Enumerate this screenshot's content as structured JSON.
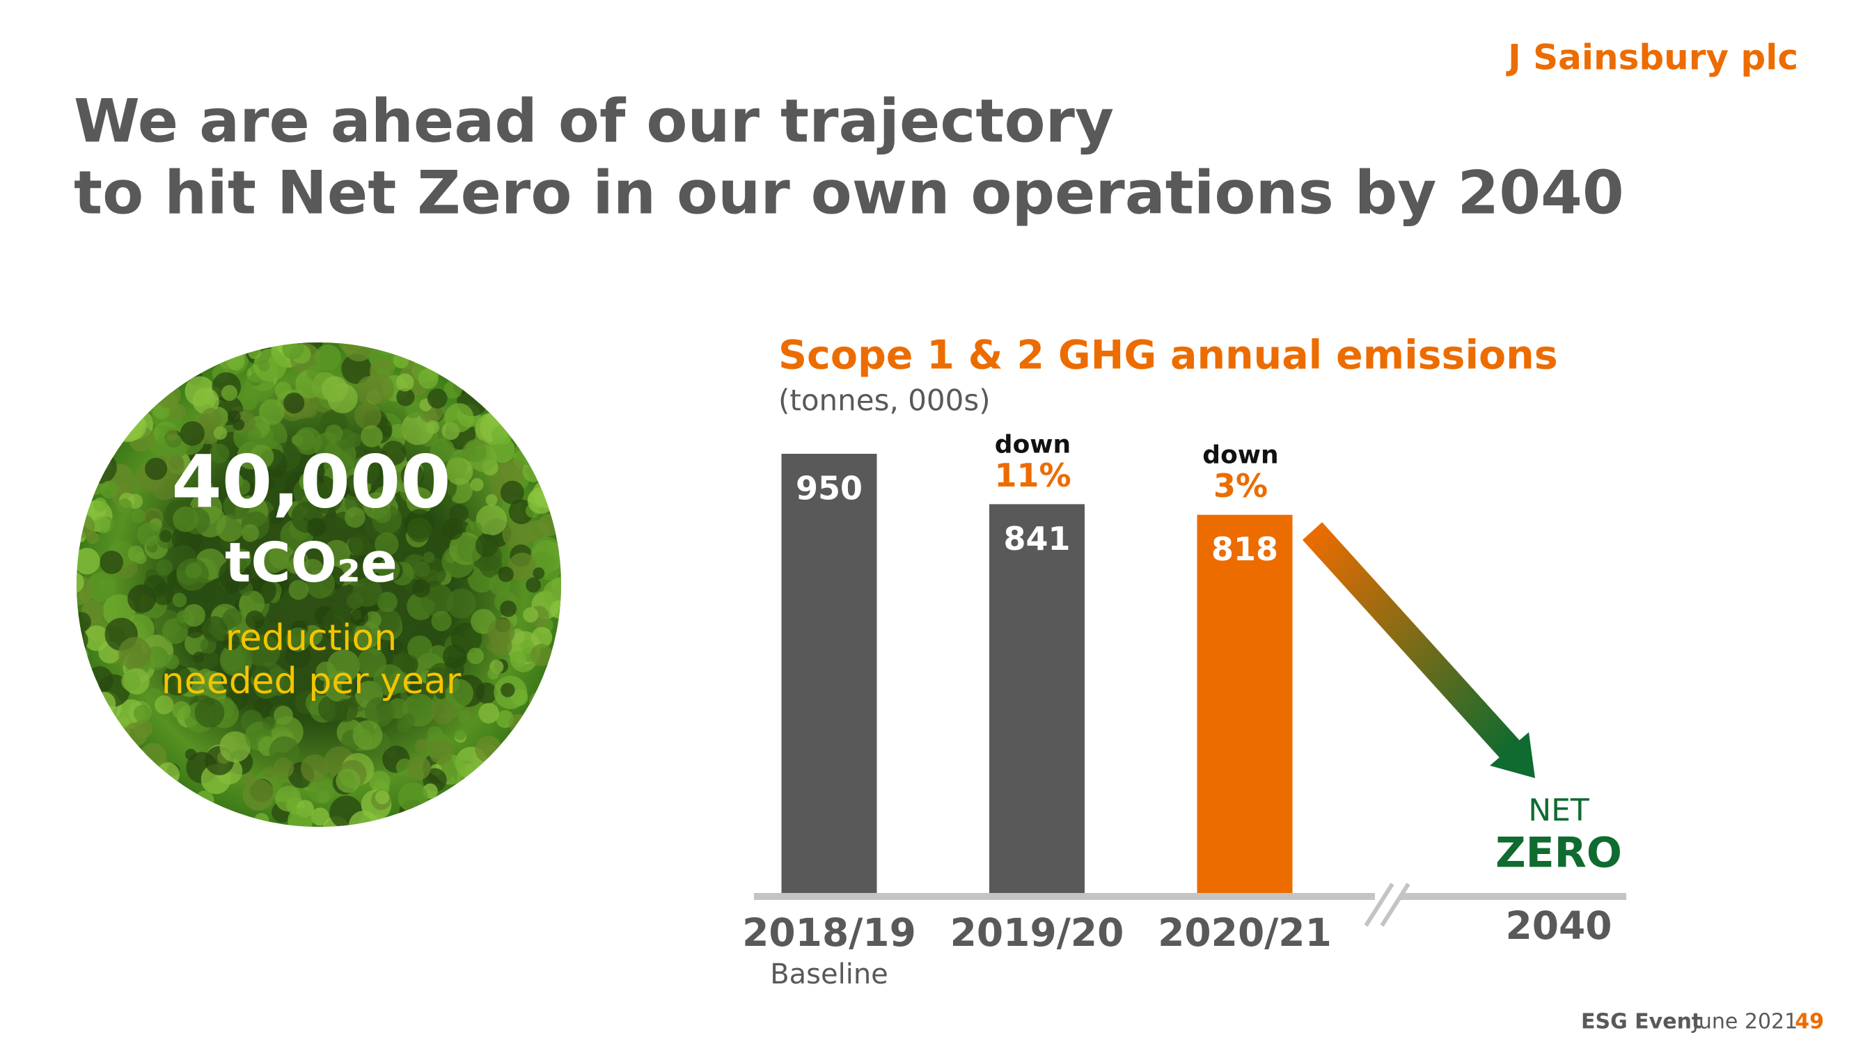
{
  "logo": "J Sainsbury plc",
  "title": [
    "We are ahead of our trajectory",
    "to hit Net Zero in our own operations by 2040"
  ],
  "callout": {
    "value": "40,000",
    "unit": "tCO₂e",
    "lines": [
      "reduction",
      "needed per year"
    ]
  },
  "chart_data": {
    "type": "bar",
    "title": "Scope 1 & 2 GHG annual emissions",
    "subtitle": "(tonnes, 000s)",
    "categories": [
      "2018/19",
      "2019/20",
      "2020/21",
      "2040"
    ],
    "values": [
      950,
      841,
      818,
      null
    ],
    "colors": [
      "#595959",
      "#595959",
      "#ec6c00",
      "#0f6b2f"
    ],
    "baseline_label": "Baseline",
    "change_labels": [
      null,
      {
        "text": "down",
        "value": "11%"
      },
      {
        "text": "down",
        "value": "3%"
      },
      null
    ],
    "target_label": [
      "NET",
      "ZERO"
    ]
  },
  "footer": {
    "event": "ESG Event",
    "date": "June 2021",
    "page": "49"
  }
}
